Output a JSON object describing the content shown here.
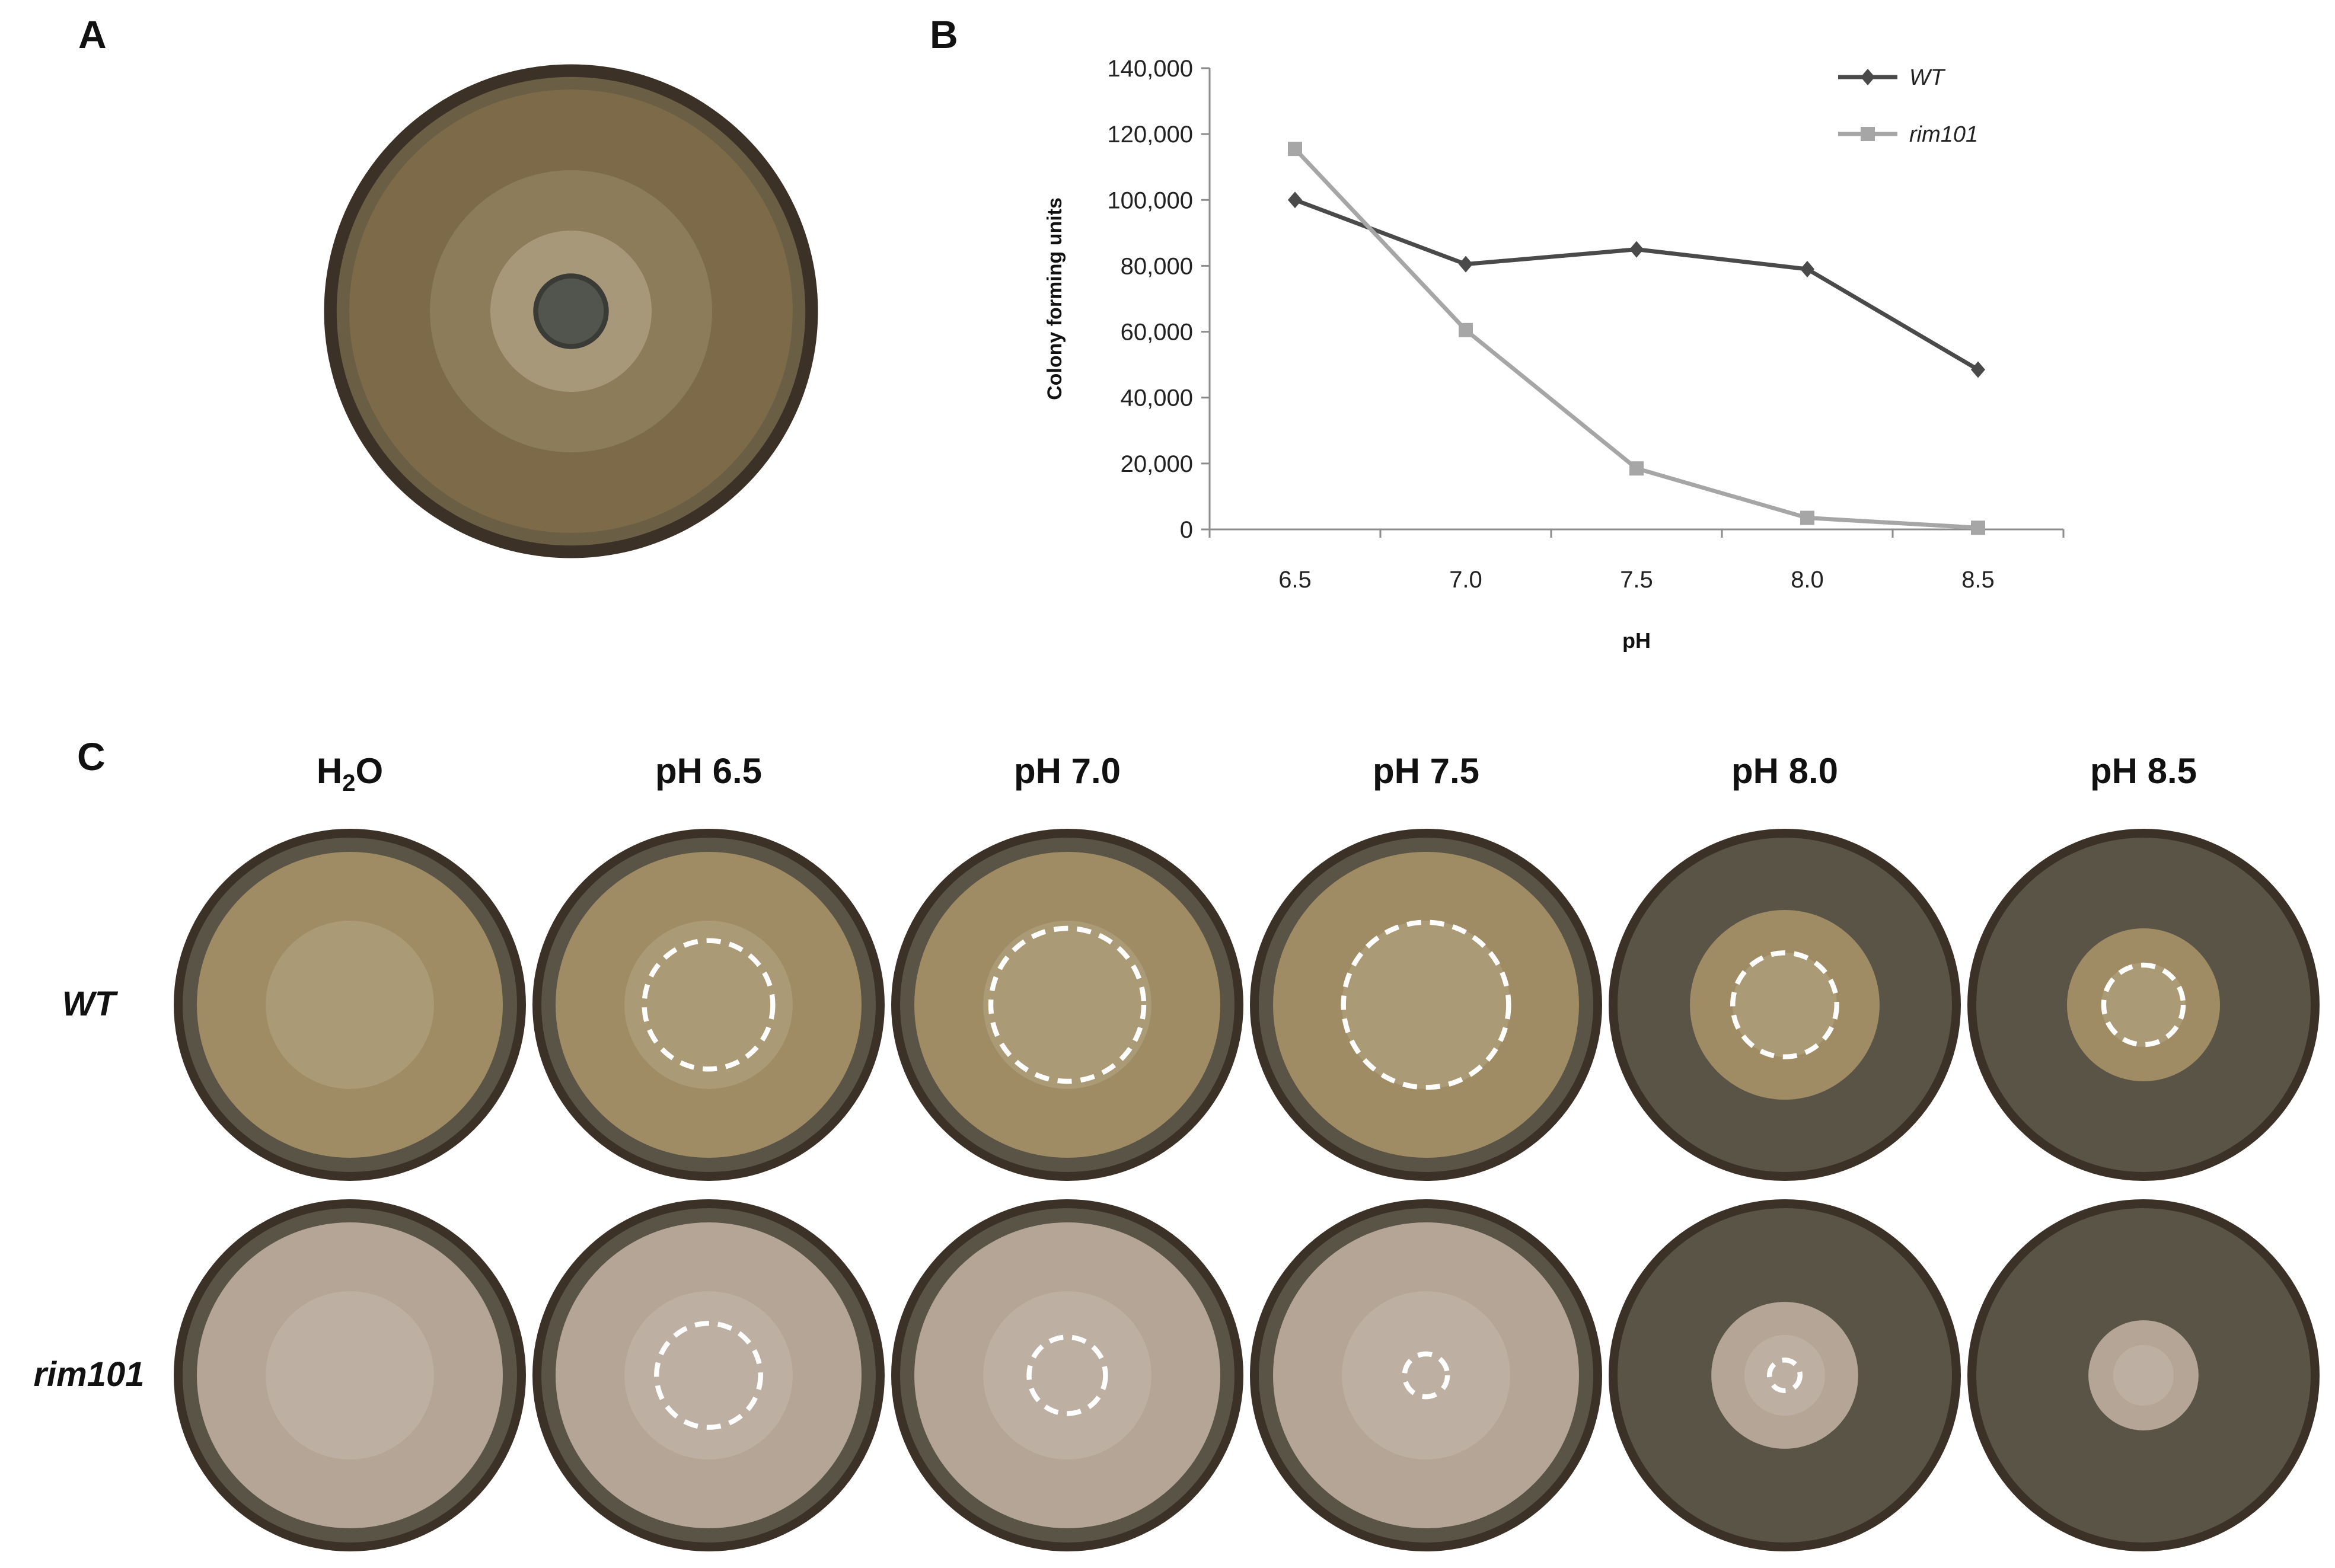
{
  "panels": {
    "a_label": "A",
    "b_label": "B",
    "c_label": "C"
  },
  "colors": {
    "wt_line": "#4a4a4a",
    "rim101_line": "#a6a6a6",
    "plate_rim": "#3b3126",
    "agar_dark": "#5a5446",
    "wt_colony": "#a08c64",
    "rim101_colony": "#b4a596",
    "ring_marker": "#ffffff"
  },
  "chart_data": {
    "type": "line",
    "title": "",
    "xlabel": "pH",
    "ylabel": "Colony forming units",
    "categories": [
      "6.5",
      "7.0",
      "7.5",
      "8.0",
      "8.5"
    ],
    "ylim": [
      0,
      140000
    ],
    "yticks": [
      0,
      20000,
      40000,
      60000,
      80000,
      100000,
      120000,
      140000
    ],
    "ytick_labels": [
      "0",
      "20,000",
      "40,000",
      "60,000",
      "80,000",
      "100,000",
      "120,000",
      "140,000"
    ],
    "grid": false,
    "legend_position": "top-right",
    "series": [
      {
        "name": "WT",
        "marker": "diamond",
        "color": "#4a4a4a",
        "values": [
          100000,
          80500,
          85000,
          79000,
          48500
        ]
      },
      {
        "name": "rim101",
        "marker": "square",
        "color": "#a6a6a6",
        "values": [
          115500,
          60500,
          18500,
          3500,
          500
        ]
      }
    ]
  },
  "panel_c": {
    "columns": [
      "H2O",
      "pH 6.5",
      "pH 7.0",
      "pH 7.5",
      "pH 8.0",
      "pH 8.5"
    ],
    "h2o_main": "H",
    "h2o_sub": "2",
    "h2o_tail": "O",
    "rows": [
      {
        "label": "WT",
        "colony_extent": [
          1.0,
          1.0,
          1.0,
          1.0,
          0.62,
          0.5
        ],
        "marked_zone": [
          0,
          0.42,
          0.5,
          0.54,
          0.34,
          0.26
        ]
      },
      {
        "label": "rim101",
        "colony_extent": [
          1.0,
          1.0,
          1.0,
          1.0,
          0.48,
          0.36
        ],
        "marked_zone": [
          0,
          0.34,
          0.25,
          0.14,
          0.1,
          0
        ]
      }
    ]
  }
}
